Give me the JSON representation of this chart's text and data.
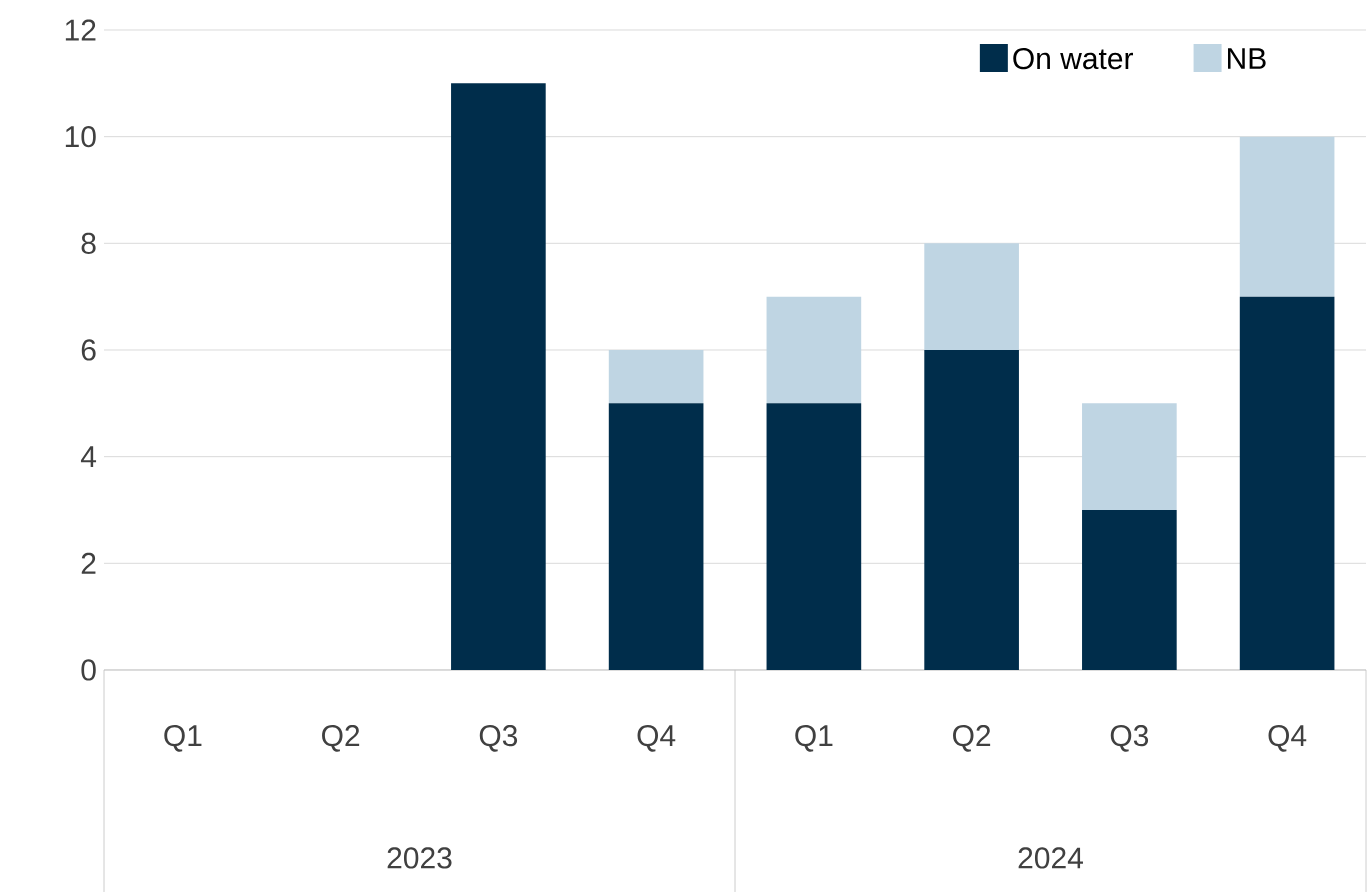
{
  "chart_data": {
    "type": "bar",
    "stacked": true,
    "categories": [
      "Q1",
      "Q2",
      "Q3",
      "Q4",
      "Q1",
      "Q2",
      "Q3",
      "Q4"
    ],
    "series": [
      {
        "name": "On water",
        "color": "#002d4b",
        "values": [
          0,
          0,
          11,
          5,
          5,
          6,
          3,
          7
        ]
      },
      {
        "name": "NB",
        "color": "#bfd5e3",
        "values": [
          0,
          0,
          0,
          1,
          2,
          2,
          2,
          3
        ]
      }
    ],
    "ylim": [
      0,
      12
    ],
    "yticks": [
      0,
      2,
      4,
      6,
      8,
      10,
      12
    ],
    "grid": "y",
    "legend": "top right",
    "annotations": [
      "2023",
      "2024"
    ]
  }
}
